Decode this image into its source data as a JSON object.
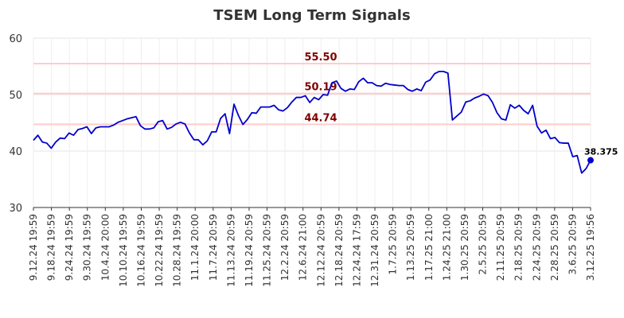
{
  "chart_data": {
    "type": "line",
    "title": "TSEM Long Term Signals",
    "xlabel": "",
    "ylabel": "",
    "ylim": [
      30,
      60
    ],
    "yticks": [
      30,
      40,
      50,
      60
    ],
    "grid": true,
    "x_tick_labels": [
      "9.12.24 19:59",
      "9.18.24 19:59",
      "9.24.24 19:59",
      "9.30.24 19:59",
      "10.4.24 20:00",
      "10.10.24 19:59",
      "10.16.24 19:59",
      "10.22.24 19:59",
      "10.28.24 19:59",
      "11.1.24 20:00",
      "11.7.24 20:59",
      "11.13.24 20:59",
      "11.19.24 20:59",
      "11.25.24 20:59",
      "12.2.24 20:59",
      "12.6.24 21:00",
      "12.12.24 20:59",
      "12.18.24 20:59",
      "12.24.24 17:59",
      "12.31.24 20:59",
      "1.7.25 20:59",
      "1.13.25 20:59",
      "1.17.25 21:00",
      "1.24.25 21:00",
      "1.30.25 20:59",
      "2.5.25 20:59",
      "2.11.25 20:59",
      "2.18.25 20:59",
      "2.24.25 20:59",
      "2.28.25 20:59",
      "3.6.25 20:59",
      "3.12.25 19:56"
    ],
    "reference_lines": [
      {
        "value": 55.5,
        "label": "55.50",
        "color": "#ffcccc"
      },
      {
        "value": 50.19,
        "label": "50.19",
        "color": "#ffcccc"
      },
      {
        "value": 44.74,
        "label": "44.74",
        "color": "#ffcccc"
      }
    ],
    "series": [
      {
        "color": "#0000cc",
        "values": [
          41.9,
          42.8,
          41.6,
          41.4,
          40.5,
          41.6,
          42.3,
          42.2,
          43.2,
          42.8,
          43.8,
          44.0,
          44.3,
          43.1,
          44.1,
          44.3,
          44.3,
          44.3,
          44.6,
          45.1,
          45.4,
          45.7,
          45.9,
          46.1,
          44.5,
          43.9,
          43.9,
          44.1,
          45.2,
          45.4,
          43.9,
          44.2,
          44.8,
          45.1,
          44.8,
          43.2,
          42.0,
          42.0,
          41.1,
          41.8,
          43.4,
          43.4,
          45.8,
          46.6,
          43.1,
          48.3,
          46.3,
          44.7,
          45.6,
          46.8,
          46.7,
          47.8,
          47.8,
          47.8,
          48.1,
          47.3,
          47.1,
          47.7,
          48.7,
          49.5,
          49.5,
          49.8,
          48.6,
          49.5,
          49.1,
          50.0,
          49.9,
          52.1,
          52.4,
          51.1,
          50.6,
          51.0,
          50.9,
          52.3,
          52.9,
          52.1,
          52.1,
          51.6,
          51.5,
          52.0,
          51.8,
          51.7,
          51.6,
          51.6,
          50.9,
          50.6,
          51.0,
          50.7,
          52.2,
          52.6,
          53.7,
          54.1,
          54.1,
          53.8,
          45.5,
          46.2,
          46.9,
          48.7,
          48.9,
          49.4,
          49.7,
          50.1,
          49.8,
          48.6,
          46.8,
          45.7,
          45.5,
          48.2,
          47.6,
          48.1,
          47.2,
          46.6,
          48.1,
          44.4,
          43.2,
          43.7,
          42.2,
          42.4,
          41.5,
          41.4,
          41.4,
          39.0,
          39.2,
          36.1,
          36.9,
          38.375
        ]
      }
    ],
    "last_value_label": "38.375"
  }
}
